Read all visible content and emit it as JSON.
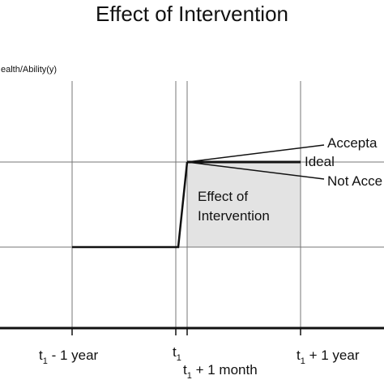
{
  "title": "Effect of Intervention",
  "y_axis_label": "ealth/Ability(y)",
  "x_ticks": {
    "t1_minus_1_year": {
      "base": "t",
      "sub": "1",
      "rest": " - 1 year"
    },
    "t1": {
      "base": "t",
      "sub": "1"
    },
    "t1_plus_1_month": {
      "base": "t",
      "sub": "1",
      "rest": " + 1 month"
    },
    "t1_plus_1_year": {
      "base": "t",
      "sub": "1",
      "rest": " + 1 year"
    }
  },
  "annotations": {
    "acceptable": "Accepta",
    "ideal": "Ideal",
    "not_acceptable": "Not Acce",
    "effect_line1": "Effect of",
    "effect_line2": "Intervention"
  },
  "colors": {
    "shaded_region": "#e3e3e3",
    "grid": "#777777",
    "line": "#111111"
  }
}
